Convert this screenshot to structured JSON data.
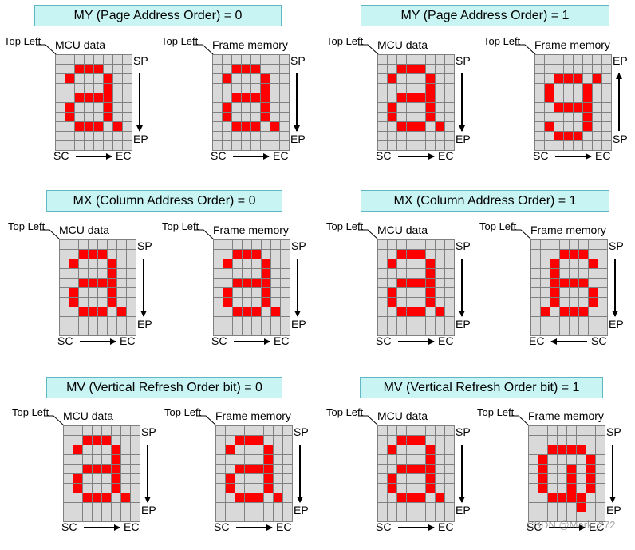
{
  "labels": {
    "top_left": "Top Left",
    "sp": "SP",
    "ep": "EP",
    "sc": "SC",
    "ec": "EC"
  },
  "captions": {
    "mcu": "MCU data",
    "frame": "Frame memory"
  },
  "sections": [
    {
      "id": "my0",
      "title": "MY (Page Address Order) = 0"
    },
    {
      "id": "my1",
      "title": "MY (Page Address Order) = 1"
    },
    {
      "id": "mx0",
      "title": "MX (Column Address Order) = 0"
    },
    {
      "id": "mx1",
      "title": "MX (Column Address Order) = 1"
    },
    {
      "id": "mv0",
      "title": "MV (Vertical Refresh Order bit) = 0"
    },
    {
      "id": "mv1",
      "title": "MV (Vertical Refresh Order bit) = 1"
    }
  ],
  "patterns": {
    "a": [
      "........",
      "..RRR...",
      ".R...R..",
      ".....R..",
      "..RRRR..",
      ".R...R..",
      ".R...R..",
      "..RRR.R.",
      "........",
      "........"
    ],
    "a_vflip": [
      "........",
      "........",
      "..RRR.R.",
      ".R...R..",
      ".R...R..",
      "..RRRR..",
      ".....R..",
      ".R...R..",
      "..RRR...",
      "........"
    ],
    "a_hflip": [
      "........",
      "...RRR..",
      "..R...R.",
      "..R.....",
      "..RRRR..",
      "..R...R.",
      "..R...R.",
      ".R.RRR..",
      "........",
      "........"
    ],
    "a_rot": [
      "........",
      "........",
      "..RRRR..",
      ".R....R.",
      ".R..R.R.",
      ".R..R.R.",
      ".R..R.R.",
      "..RRRR..",
      ".....R..",
      "........"
    ]
  },
  "panels": [
    {
      "section": "my0",
      "caption": "mcu",
      "pattern": "a",
      "vert": "down",
      "horiz": "right"
    },
    {
      "section": "my0",
      "caption": "frame",
      "pattern": "a",
      "vert": "down",
      "horiz": "right"
    },
    {
      "section": "my1",
      "caption": "mcu",
      "pattern": "a",
      "vert": "down",
      "horiz": "right"
    },
    {
      "section": "my1",
      "caption": "frame",
      "pattern": "a_vflip",
      "vert": "up",
      "horiz": "right"
    },
    {
      "section": "mx0",
      "caption": "mcu",
      "pattern": "a",
      "vert": "down",
      "horiz": "right"
    },
    {
      "section": "mx0",
      "caption": "frame",
      "pattern": "a",
      "vert": "down",
      "horiz": "right"
    },
    {
      "section": "mx1",
      "caption": "mcu",
      "pattern": "a",
      "vert": "down",
      "horiz": "right"
    },
    {
      "section": "mx1",
      "caption": "frame",
      "pattern": "a_hflip",
      "vert": "down",
      "horiz": "left"
    },
    {
      "section": "mv0",
      "caption": "mcu",
      "pattern": "a",
      "vert": "down",
      "horiz": "right"
    },
    {
      "section": "mv0",
      "caption": "frame",
      "pattern": "a",
      "vert": "down",
      "horiz": "right"
    },
    {
      "section": "mv1",
      "caption": "mcu",
      "pattern": "a",
      "vert": "down",
      "horiz": "right"
    },
    {
      "section": "mv1",
      "caption": "frame",
      "pattern": "a_rot",
      "vert": "down",
      "horiz": "right"
    }
  ],
  "watermark": "CSDN @Mark_272"
}
